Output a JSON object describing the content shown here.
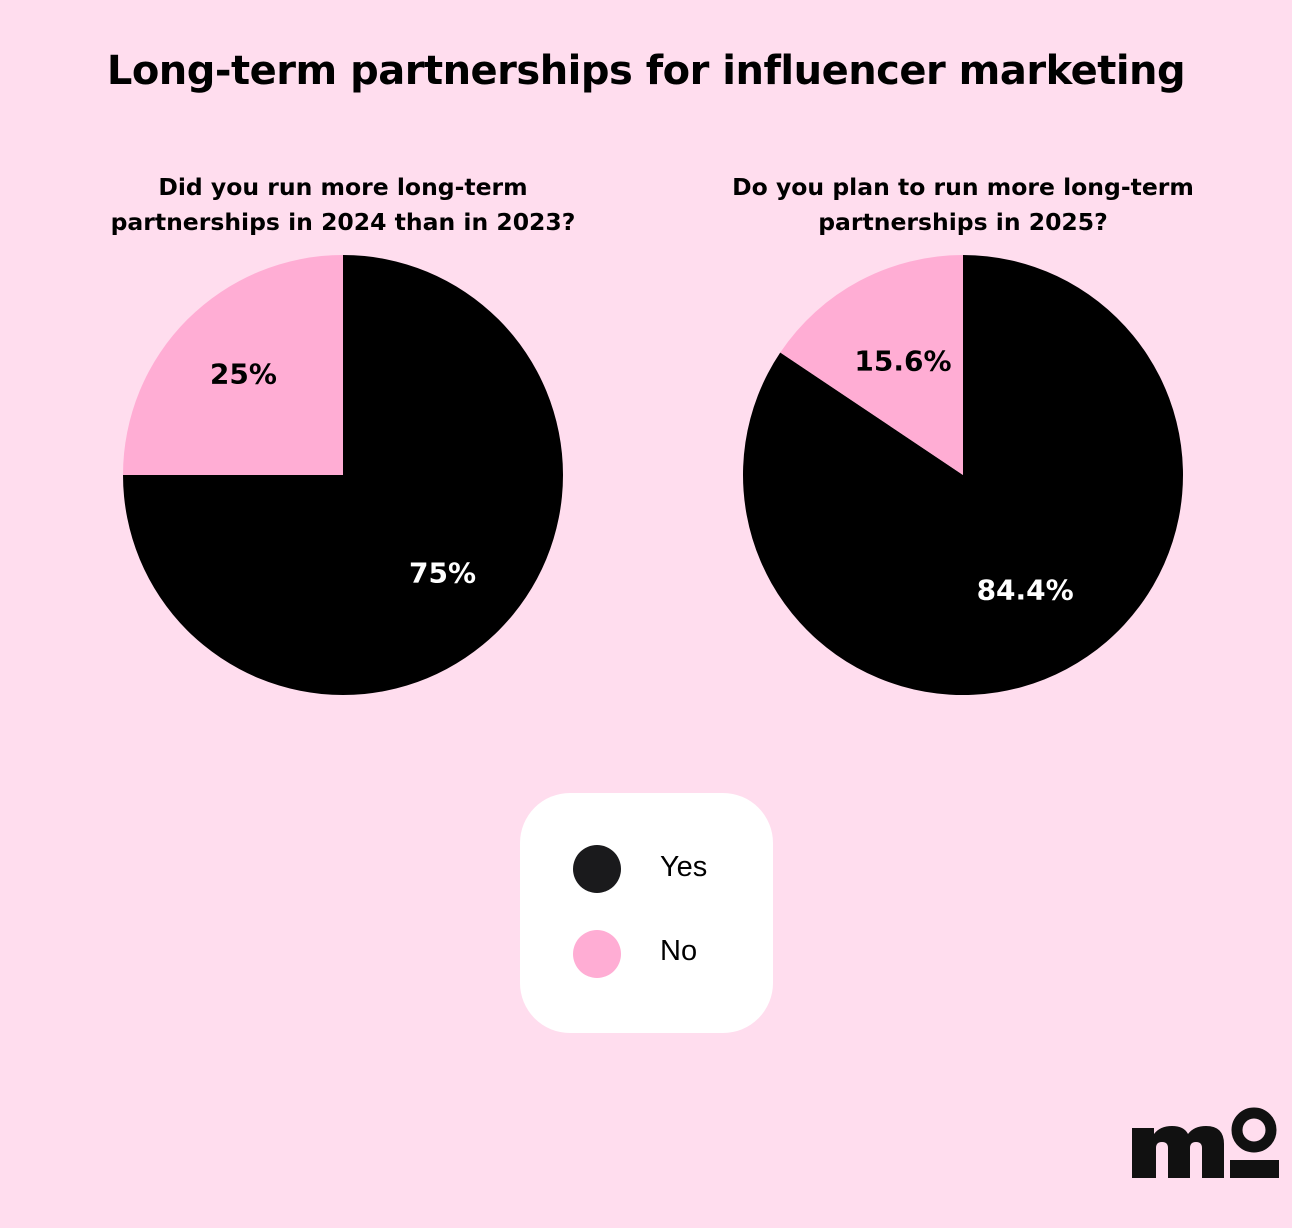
{
  "title": "Long-term partnerships for influencer marketing",
  "colors": {
    "background": "#FFDDEE",
    "yes": "#000000",
    "no": "#FFADD4",
    "legend_bg": "#FFFFFF"
  },
  "legend": {
    "items": [
      {
        "label": "Yes",
        "color": "#1A1A1C"
      },
      {
        "label": "No",
        "color": "#FFADD4"
      }
    ]
  },
  "chart_data": [
    {
      "type": "pie",
      "title": "Did you run more long-term partnerships in 2024 than in 2023?",
      "slices": [
        {
          "label": "Yes",
          "value": 75,
          "display": "75%",
          "color": "#000000"
        },
        {
          "label": "No",
          "value": 25,
          "display": "25%",
          "color": "#FFADD4"
        }
      ],
      "legend": "bottom"
    },
    {
      "type": "pie",
      "title": "Do you plan to run more long-term partnerships in 2025?",
      "slices": [
        {
          "label": "Yes",
          "value": 84.4,
          "display": "84.4%",
          "color": "#000000"
        },
        {
          "label": "No",
          "value": 15.6,
          "display": "15.6%",
          "color": "#FFADD4"
        }
      ],
      "legend": "bottom"
    }
  ],
  "logo": {
    "text": "mo"
  }
}
